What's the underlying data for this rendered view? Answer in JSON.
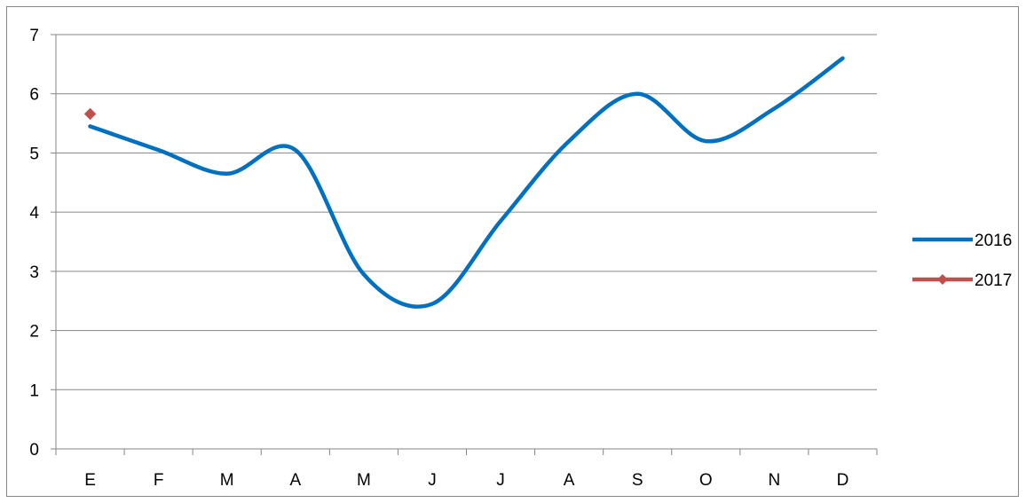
{
  "colors": {
    "series_2016": "#0070C0",
    "series_2017": "#C0504D",
    "gridline": "#868686",
    "axis": "#868686"
  },
  "chart_data": {
    "type": "line",
    "categories": [
      "E",
      "F",
      "M",
      "A",
      "M",
      "J",
      "J",
      "A",
      "S",
      "O",
      "N",
      "D"
    ],
    "series": [
      {
        "name": "2016",
        "values": [
          5.45,
          5.05,
          4.65,
          5.05,
          2.95,
          2.45,
          3.85,
          5.2,
          6.0,
          5.2,
          5.75,
          6.6
        ],
        "smooth": true,
        "marker": "none"
      },
      {
        "name": "2017",
        "values": [
          5.66,
          null,
          null,
          null,
          null,
          null,
          null,
          null,
          null,
          null,
          null,
          null
        ],
        "smooth": false,
        "marker": "diamond"
      }
    ],
    "y_ticks": [
      "0",
      "1",
      "2",
      "3",
      "4",
      "5",
      "6",
      "7"
    ],
    "ylim": [
      0,
      7
    ],
    "grid": true,
    "legend_position": "right",
    "title": "",
    "xlabel": "",
    "ylabel": ""
  }
}
